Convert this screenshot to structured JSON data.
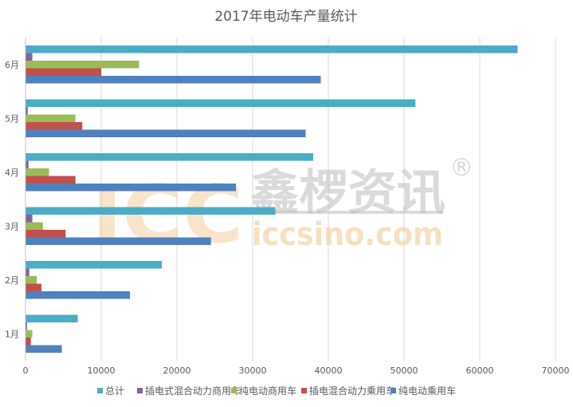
{
  "chart_data": {
    "type": "bar",
    "orientation": "horizontal",
    "title": "2017年电动车产量统计",
    "categories": [
      "1月",
      "2月",
      "3月",
      "4月",
      "5月",
      "6月"
    ],
    "xlim": [
      0,
      70000
    ],
    "xticks": [
      0,
      10000,
      20000,
      30000,
      40000,
      50000,
      60000,
      70000
    ],
    "grid": true,
    "legend_position": "bottom",
    "series": [
      {
        "name": "总计",
        "color": "#4bacc6",
        "values": [
          6900,
          18000,
          33000,
          38000,
          51500,
          65000
        ]
      },
      {
        "name": "插电式混合动力商用车",
        "color": "#8064a2",
        "values": [
          200,
          500,
          900,
          400,
          300,
          900
        ]
      },
      {
        "name": "纯电动商用车",
        "color": "#9bbb59",
        "values": [
          900,
          1500,
          2300,
          3100,
          6600,
          15000
        ]
      },
      {
        "name": "插电混合动力乘用车",
        "color": "#c0504d",
        "values": [
          700,
          2100,
          5300,
          6600,
          7500,
          10000
        ]
      },
      {
        "name": "纯电动乘用车",
        "color": "#4f81bd",
        "values": [
          4800,
          13800,
          24500,
          27800,
          37000,
          39000
        ]
      }
    ]
  },
  "watermark": {
    "logo": "ICC",
    "brand": "鑫椤资讯",
    "registered": "®",
    "url": "iccsino.com"
  }
}
